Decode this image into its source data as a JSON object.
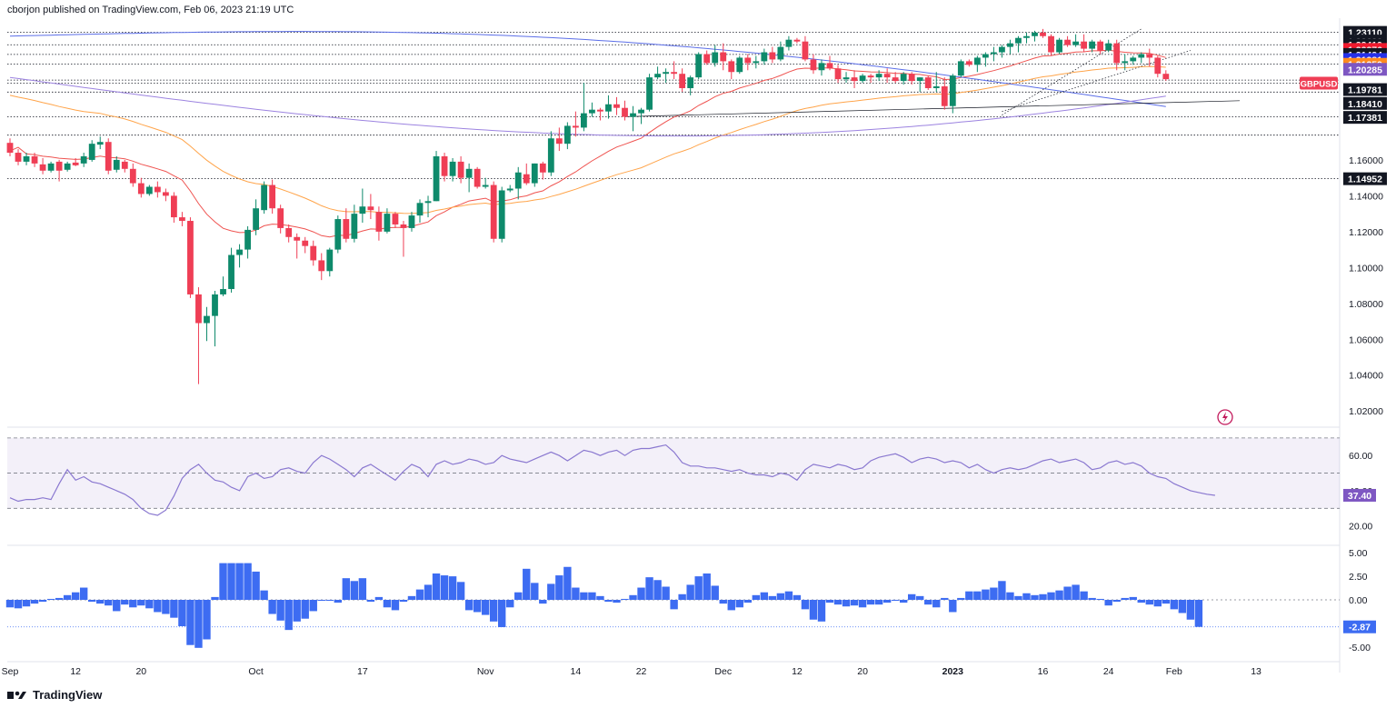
{
  "header": {
    "published_text": "cborjon published on TradingView.com, Feb 06, 2023 21:19 UTC"
  },
  "footer": {
    "brand": "TradingView",
    "logo_icon": "tradingview-logo-icon"
  },
  "colors": {
    "bull": "#26a69a",
    "bull_body": "#0e8a6b",
    "bear": "#ef3e55",
    "ema_red": "#ef5350",
    "ema_orange": "#ffa44a",
    "ma_blue": "#5b6ee8",
    "ma_purple": "#9c83e0",
    "rsi": "#8a78d0",
    "macd_hist": "#3d6cf2"
  },
  "chart_data": [
    {
      "type": "candlestick",
      "symbol": "GBPUSD",
      "currency": "USD",
      "ylim": [
        1.012,
        1.238
      ],
      "x_labels": [
        "Sep",
        "12",
        "20",
        "Oct",
        "17",
        "Nov",
        "14",
        "22",
        "Dec",
        "12",
        "20",
        "2023",
        "16",
        "24",
        "Feb",
        "13"
      ],
      "y_ticks": [
        "1.20000",
        "1.16000",
        "1.14000",
        "1.12000",
        "1.10000",
        "1.08000",
        "1.06000",
        "1.04000",
        "1.02000"
      ],
      "price_tags": [
        {
          "value": "1.23110",
          "price": 1.2311,
          "color": "#131722"
        },
        {
          "value": "1.22630",
          "price": 1.2263,
          "color": "#131722"
        },
        {
          "value": "1.22419",
          "price": 1.2242,
          "color": "#131722"
        },
        {
          "value": "1.22376",
          "price": 1.2216,
          "color": "#ef1a2e"
        },
        {
          "value": "1.21424",
          "price": 1.2188,
          "color": "#131722"
        },
        {
          "value": "1.21381",
          "price": 1.216,
          "color": "#2530e8"
        },
        {
          "value": "1.21359",
          "price": 1.2133,
          "color": "#ff8a1e"
        },
        {
          "value": "1.20285",
          "price": 1.2105,
          "color": "#7e57c2"
        },
        {
          "value": "1.19781",
          "price": 1.1992,
          "color": "#131722"
        },
        {
          "value": "1.18410",
          "price": 1.1915,
          "color": "#131722"
        },
        {
          "value": "1.17381",
          "price": 1.1837,
          "color": "#131722"
        },
        {
          "value": "1.14952",
          "price": 1.1495,
          "color": "#131722"
        }
      ],
      "symbol_tag": {
        "label": "GBPUSD",
        "price": 1.2028
      },
      "hlines": [
        1.2311,
        1.2242,
        1.2188,
        1.2135,
        1.2045,
        1.2028,
        1.1978,
        1.1841,
        1.1738,
        1.1495
      ],
      "candles": [
        [
          1.1695,
          1.172,
          1.162,
          1.164
        ],
        [
          1.164,
          1.166,
          1.157,
          1.159
        ],
        [
          1.159,
          1.164,
          1.157,
          1.162
        ],
        [
          1.162,
          1.164,
          1.156,
          1.158
        ],
        [
          1.1575,
          1.161,
          1.152,
          1.154
        ],
        [
          1.154,
          1.159,
          1.153,
          1.158
        ],
        [
          1.159,
          1.16,
          1.148,
          1.154
        ],
        [
          1.1545,
          1.159,
          1.1535,
          1.158
        ],
        [
          1.1585,
          1.161,
          1.1565,
          1.157
        ],
        [
          1.158,
          1.164,
          1.156,
          1.162
        ],
        [
          1.16,
          1.171,
          1.159,
          1.169
        ],
        [
          1.1685,
          1.173,
          1.166,
          1.17
        ],
        [
          1.17,
          1.172,
          1.152,
          1.154
        ],
        [
          1.1545,
          1.162,
          1.153,
          1.16
        ],
        [
          1.159,
          1.16,
          1.153,
          1.155
        ],
        [
          1.155,
          1.158,
          1.145,
          1.147
        ],
        [
          1.147,
          1.15,
          1.139,
          1.141
        ],
        [
          1.141,
          1.146,
          1.14,
          1.145
        ],
        [
          1.145,
          1.148,
          1.139,
          1.142
        ],
        [
          1.142,
          1.144,
          1.137,
          1.14
        ],
        [
          1.14,
          1.142,
          1.125,
          1.128
        ],
        [
          1.128,
          1.131,
          1.123,
          1.126
        ],
        [
          1.126,
          1.128,
          1.083,
          1.085
        ],
        [
          1.085,
          1.089,
          1.035,
          1.069
        ],
        [
          1.069,
          1.078,
          1.059,
          1.073
        ],
        [
          1.073,
          1.087,
          1.056,
          1.085
        ],
        [
          1.085,
          1.095,
          1.084,
          1.088
        ],
        [
          1.088,
          1.111,
          1.086,
          1.107
        ],
        [
          1.107,
          1.113,
          1.1,
          1.11
        ],
        [
          1.11,
          1.123,
          1.105,
          1.121
        ],
        [
          1.121,
          1.138,
          1.118,
          1.133
        ],
        [
          1.132,
          1.148,
          1.13,
          1.146
        ],
        [
          1.146,
          1.149,
          1.13,
          1.133
        ],
        [
          1.133,
          1.135,
          1.119,
          1.122
        ],
        [
          1.122,
          1.124,
          1.114,
          1.117
        ],
        [
          1.117,
          1.119,
          1.105,
          1.115
        ],
        [
          1.115,
          1.117,
          1.108,
          1.112
        ],
        [
          1.112,
          1.115,
          1.101,
          1.104
        ],
        [
          1.104,
          1.108,
          1.093,
          1.098
        ],
        [
          1.098,
          1.111,
          1.095,
          1.11
        ],
        [
          1.11,
          1.129,
          1.108,
          1.127
        ],
        [
          1.127,
          1.133,
          1.114,
          1.116
        ],
        [
          1.116,
          1.135,
          1.114,
          1.13
        ],
        [
          1.13,
          1.144,
          1.125,
          1.134
        ],
        [
          1.134,
          1.141,
          1.127,
          1.132
        ],
        [
          1.131,
          1.134,
          1.115,
          1.12
        ],
        [
          1.12,
          1.133,
          1.119,
          1.13
        ],
        [
          1.13,
          1.131,
          1.122,
          1.124
        ],
        [
          1.124,
          1.126,
          1.106,
          1.122
        ],
        [
          1.122,
          1.131,
          1.12,
          1.129
        ],
        [
          1.129,
          1.138,
          1.125,
          1.136
        ],
        [
          1.136,
          1.14,
          1.128,
          1.137
        ],
        [
          1.137,
          1.165,
          1.137,
          1.162
        ],
        [
          1.162,
          1.164,
          1.148,
          1.151
        ],
        [
          1.151,
          1.161,
          1.148,
          1.159
        ],
        [
          1.159,
          1.162,
          1.147,
          1.15
        ],
        [
          1.15,
          1.158,
          1.142,
          1.155
        ],
        [
          1.155,
          1.156,
          1.144,
          1.145
        ],
        [
          1.145,
          1.15,
          1.144,
          1.146
        ],
        [
          1.146,
          1.148,
          1.114,
          1.116
        ],
        [
          1.116,
          1.145,
          1.114,
          1.143
        ],
        [
          1.143,
          1.146,
          1.142,
          1.144
        ],
        [
          1.144,
          1.156,
          1.138,
          1.153
        ],
        [
          1.152,
          1.158,
          1.146,
          1.147
        ],
        [
          1.147,
          1.158,
          1.145,
          1.158
        ],
        [
          1.158,
          1.159,
          1.149,
          1.153
        ],
        [
          1.153,
          1.176,
          1.151,
          1.172
        ],
        [
          1.172,
          1.178,
          1.165,
          1.169
        ],
        [
          1.169,
          1.181,
          1.166,
          1.179
        ],
        [
          1.179,
          1.187,
          1.173,
          1.178
        ],
        [
          1.178,
          1.203,
          1.176,
          1.186
        ],
        [
          1.186,
          1.192,
          1.184,
          1.188
        ],
        [
          1.188,
          1.189,
          1.182,
          1.187
        ],
        [
          1.187,
          1.196,
          1.183,
          1.191
        ],
        [
          1.191,
          1.195,
          1.185,
          1.189
        ],
        [
          1.189,
          1.193,
          1.182,
          1.184
        ],
        [
          1.184,
          1.19,
          1.176,
          1.186
        ],
        [
          1.186,
          1.189,
          1.18,
          1.188
        ],
        [
          1.188,
          1.208,
          1.187,
          1.206
        ],
        [
          1.206,
          1.212,
          1.205,
          1.208
        ],
        [
          1.208,
          1.211,
          1.203,
          1.209
        ],
        [
          1.209,
          1.215,
          1.205,
          1.208
        ],
        [
          1.208,
          1.211,
          1.198,
          1.2
        ],
        [
          1.2,
          1.207,
          1.196,
          1.206
        ],
        [
          1.206,
          1.22,
          1.205,
          1.219
        ],
        [
          1.219,
          1.221,
          1.213,
          1.214
        ],
        [
          1.214,
          1.224,
          1.212,
          1.22
        ],
        [
          1.22,
          1.225,
          1.21,
          1.215
        ],
        [
          1.215,
          1.216,
          1.205,
          1.209
        ],
        [
          1.209,
          1.218,
          1.208,
          1.217
        ],
        [
          1.217,
          1.219,
          1.21,
          1.214
        ],
        [
          1.214,
          1.218,
          1.211,
          1.215
        ],
        [
          1.215,
          1.222,
          1.213,
          1.22
        ],
        [
          1.22,
          1.223,
          1.214,
          1.216
        ],
        [
          1.216,
          1.226,
          1.215,
          1.223
        ],
        [
          1.223,
          1.229,
          1.221,
          1.227
        ],
        [
          1.227,
          1.228,
          1.225,
          1.226
        ],
        [
          1.226,
          1.229,
          1.215,
          1.216
        ],
        [
          1.216,
          1.219,
          1.208,
          1.21
        ],
        [
          1.21,
          1.216,
          1.207,
          1.214
        ],
        [
          1.214,
          1.218,
          1.21,
          1.211
        ],
        [
          1.211,
          1.213,
          1.203,
          1.205
        ],
        [
          1.205,
          1.209,
          1.203,
          1.206
        ],
        [
          1.206,
          1.21,
          1.2,
          1.204
        ],
        [
          1.204,
          1.208,
          1.203,
          1.207
        ],
        [
          1.207,
          1.208,
          1.203,
          1.206
        ],
        [
          1.206,
          1.21,
          1.204,
          1.208
        ],
        [
          1.208,
          1.211,
          1.203,
          1.206
        ],
        [
          1.206,
          1.209,
          1.203,
          1.204
        ],
        [
          1.204,
          1.209,
          1.202,
          1.208
        ],
        [
          1.208,
          1.209,
          1.202,
          1.204
        ],
        [
          1.204,
          1.206,
          1.198,
          1.206
        ],
        [
          1.206,
          1.207,
          1.199,
          1.2
        ],
        [
          1.2,
          1.209,
          1.198,
          1.201
        ],
        [
          1.201,
          1.206,
          1.188,
          1.19
        ],
        [
          1.19,
          1.208,
          1.186,
          1.207
        ],
        [
          1.207,
          1.216,
          1.206,
          1.215
        ],
        [
          1.215,
          1.216,
          1.212,
          1.213
        ],
        [
          1.213,
          1.218,
          1.209,
          1.217
        ],
        [
          1.217,
          1.22,
          1.212,
          1.219
        ],
        [
          1.219,
          1.223,
          1.215,
          1.22
        ],
        [
          1.22,
          1.224,
          1.217,
          1.223
        ],
        [
          1.223,
          1.227,
          1.219,
          1.225
        ],
        [
          1.225,
          1.229,
          1.22,
          1.228
        ],
        [
          1.228,
          1.231,
          1.225,
          1.229
        ],
        [
          1.229,
          1.232,
          1.226,
          1.231
        ],
        [
          1.231,
          1.233,
          1.228,
          1.229
        ],
        [
          1.229,
          1.23,
          1.218,
          1.22
        ],
        [
          1.22,
          1.228,
          1.219,
          1.227
        ],
        [
          1.227,
          1.229,
          1.223,
          1.224
        ],
        [
          1.224,
          1.23,
          1.223,
          1.226
        ],
        [
          1.226,
          1.23,
          1.22,
          1.222
        ],
        [
          1.222,
          1.227,
          1.22,
          1.226
        ],
        [
          1.226,
          1.227,
          1.219,
          1.221
        ],
        [
          1.221,
          1.227,
          1.22,
          1.225
        ],
        [
          1.225,
          1.227,
          1.21,
          1.214
        ],
        [
          1.214,
          1.219,
          1.21,
          1.215
        ],
        [
          1.215,
          1.218,
          1.213,
          1.217
        ],
        [
          1.217,
          1.22,
          1.214,
          1.219
        ],
        [
          1.219,
          1.222,
          1.212,
          1.217
        ],
        [
          1.217,
          1.218,
          1.206,
          1.208
        ],
        [
          1.208,
          1.21,
          1.204,
          1.205
        ]
      ]
    },
    {
      "type": "line",
      "name": "rsi",
      "ylim": [
        10,
        72
      ],
      "y_ticks": [
        "60.00",
        "20.00"
      ],
      "band": [
        30,
        70
      ],
      "last_value_label": "37.40",
      "obscured_label": "40.00",
      "values": [
        36,
        34,
        35,
        35,
        36,
        35,
        44,
        52,
        46,
        48,
        45,
        44,
        42,
        40,
        38,
        35,
        30,
        27,
        26,
        29,
        37,
        47,
        52,
        55,
        50,
        46,
        45,
        42,
        40,
        48,
        50,
        47,
        48,
        52,
        53,
        51,
        50,
        56,
        60,
        58,
        55,
        52,
        48,
        53,
        55,
        52,
        49,
        46,
        51,
        55,
        53,
        48,
        55,
        57,
        55,
        56,
        58,
        57,
        55,
        56,
        60,
        58,
        57,
        56,
        58,
        60,
        62,
        60,
        57,
        60,
        63,
        62,
        60,
        62,
        63,
        60,
        63,
        64,
        64,
        65,
        66,
        62,
        56,
        54,
        54,
        53,
        53,
        52,
        51,
        52,
        50,
        49,
        49,
        48,
        50,
        49,
        46,
        52,
        55,
        54,
        53,
        55,
        54,
        52,
        53,
        57,
        59,
        60,
        61,
        59,
        56,
        58,
        59,
        58,
        56,
        57,
        56,
        53,
        55,
        52,
        50,
        52,
        53,
        52,
        53,
        55,
        57,
        58,
        56,
        57,
        58,
        56,
        52,
        53,
        56,
        57,
        55,
        56,
        54,
        50,
        48,
        47,
        44,
        42,
        40,
        39,
        38,
        37.4
      ]
    },
    {
      "type": "bar",
      "name": "histogram",
      "ylim": [
        -5.6,
        5.6
      ],
      "y_ticks": [
        "5.00",
        "2.50",
        "0.00",
        "-5.00"
      ],
      "last_value_label": "-2.87",
      "obscured_label": "-2.50",
      "values": [
        -0.8,
        -0.9,
        -0.7,
        -0.4,
        -0.2,
        0.1,
        0.2,
        0.5,
        0.8,
        1.3,
        -0.2,
        -0.4,
        -0.6,
        -1.2,
        -0.5,
        -0.8,
        -0.6,
        -0.9,
        -1.3,
        -1.5,
        -1.9,
        -2.8,
        -4.8,
        -5.1,
        -4.2,
        0.3,
        3.9,
        3.9,
        3.9,
        3.9,
        3.0,
        1.0,
        -1.5,
        -2.2,
        -3.2,
        -2.3,
        -2.0,
        -1.2,
        -0.1,
        -0.1,
        -0.3,
        2.3,
        2.0,
        2.3,
        -0.2,
        0.3,
        -0.8,
        -1.1,
        -0.2,
        0.4,
        1.1,
        1.6,
        2.8,
        2.6,
        2.5,
        1.9,
        -1.1,
        -1.3,
        -1.6,
        -2.3,
        -2.9,
        -0.8,
        0.8,
        3.3,
        1.8,
        -0.4,
        1.7,
        2.6,
        3.5,
        1.3,
        0.8,
        0.8,
        0.4,
        -0.2,
        -0.3,
        0.1,
        0.5,
        1.3,
        2.4,
        2.1,
        1.4,
        -1.0,
        0.6,
        1.6,
        2.5,
        2.8,
        1.5,
        -0.4,
        -1.1,
        -0.8,
        -0.3,
        0.5,
        0.8,
        0.4,
        0.7,
        0.9,
        0.5,
        -1.0,
        -2.1,
        -2.3,
        -0.3,
        -0.5,
        -0.7,
        -0.6,
        -0.8,
        -0.5,
        -0.5,
        -0.3,
        -0.1,
        -0.3,
        0.6,
        0.4,
        -0.5,
        -0.8,
        0.2,
        -1.3,
        0.2,
        0.9,
        0.9,
        1.1,
        1.3,
        2.0,
        0.8,
        0.4,
        0.7,
        0.5,
        0.6,
        0.8,
        1.0,
        1.4,
        1.6,
        0.9,
        0.2,
        0.1,
        -0.6,
        -0.2,
        0.2,
        0.3,
        -0.3,
        -0.5,
        -0.7,
        -0.4,
        -1.0,
        -1.4,
        -2.1,
        -2.87
      ]
    }
  ]
}
